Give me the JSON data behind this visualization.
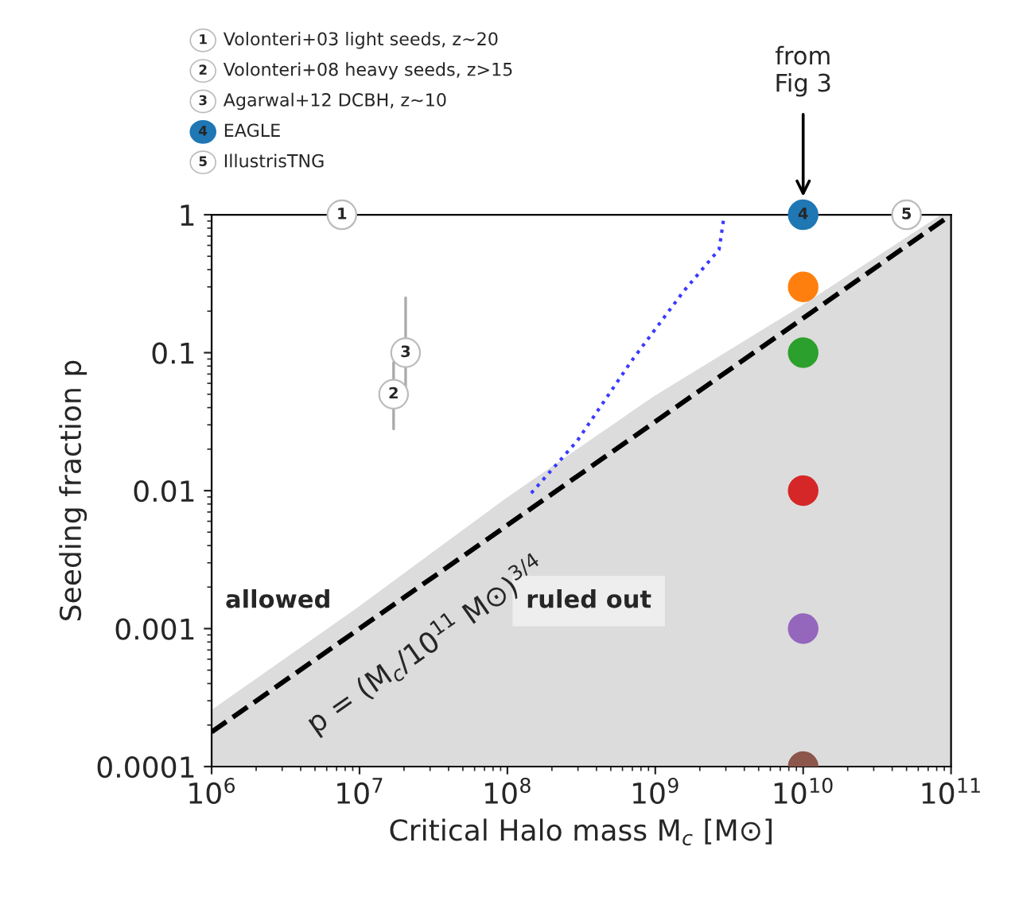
{
  "chart_data": {
    "type": "scatter",
    "xlabel": "Critical Halo mass M$_{c}$ [M⊙]",
    "ylabel": "Seeding fraction p",
    "log": "xy",
    "xlim": [
      1000000,
      100000000000
    ],
    "xticks": [
      {
        "value": 1000000,
        "label": "10$^{6}$"
      },
      {
        "value": 10000000,
        "label": "10$^{7}$"
      },
      {
        "value": 100000000,
        "label": "10$^{8}$"
      },
      {
        "value": 1000000000,
        "label": "10$^{9}$"
      },
      {
        "value": 10000000000,
        "label": "10$^{10}$"
      },
      {
        "value": 100000000000,
        "label": "10$^{11}$"
      }
    ],
    "ylim": [
      0.0001,
      1
    ],
    "yticks": [
      {
        "value": 0.0001,
        "label": "0.0001"
      },
      {
        "value": 0.001,
        "label": "0.001"
      },
      {
        "value": 0.01,
        "label": "0.01"
      },
      {
        "value": 0.1,
        "label": "0.1"
      },
      {
        "value": 1,
        "label": "1"
      }
    ],
    "grid": false,
    "legend": "top left",
    "series": [
      {
        "type": "area",
        "color": "#dcdcdc",
        "x": [
          1000000,
          10000000,
          100000000,
          1000000000,
          10000000000,
          100000000000
        ],
        "values": [
          0.00023,
          0.0013,
          0.008,
          0.044,
          0.2,
          1
        ]
      },
      {
        "type": "line",
        "color": "#000000",
        "line_style": "dashed",
        "x": [
          1000000,
          100000000000
        ],
        "values": [
          0.000178,
          1
        ]
      },
      {
        "type": "line",
        "color": "#3a3aff",
        "line_style": "dotted",
        "x": [
          145000000,
          297000000,
          690000000,
          1560000000,
          2700000000,
          2900000000
        ],
        "values": [
          0.0096,
          0.023,
          0.087,
          0.28,
          0.56,
          0.93
        ]
      },
      {
        "colors": [
          "#ff7f0e",
          "#2ca02c",
          "#d62728",
          "#9467bd",
          "#8c564b"
        ],
        "x": [
          10000000000,
          10000000000,
          10000000000,
          10000000000,
          10000000000
        ],
        "values": [
          0.3,
          0.1,
          0.01,
          0.001,
          0.0001
        ]
      },
      {
        "name": "Volonteri+03 light seeds, z~20",
        "color": "#ffffff",
        "x": [
          7600000
        ],
        "values": [
          1
        ]
      },
      {
        "name": "Volonteri+08 heavy seeds, z>15",
        "color": "#ffffff",
        "x": [
          17000000
        ],
        "values": [
          0.05
        ],
        "errors": [
          [
            0.028,
            0.085
          ]
        ]
      },
      {
        "name": "Agarwal+12 DCBH, z~10",
        "color": "#ffffff",
        "x": [
          20500000
        ],
        "values": [
          0.1
        ],
        "errors": [
          [
            0.05,
            0.25
          ]
        ]
      },
      {
        "name": "EAGLE",
        "color": "#1f77b4",
        "x": [
          10000000000
        ],
        "values": [
          1
        ]
      },
      {
        "name": "IllustrisTNG",
        "color": "#ffffff",
        "x": [
          50000000000
        ],
        "values": [
          1
        ]
      }
    ],
    "annotations": [
      "allowed",
      "ruled out",
      "p = (M$_{c}$/10$^{11}$ M⊙)$^{3/4}$",
      "from\nFig 3",
      {
        "text": "1",
        "x": 7600000,
        "y": 1
      },
      {
        "text": "2",
        "x": 17000000,
        "y": 0.05
      },
      {
        "text": "3",
        "x": 20500000,
        "y": 0.1
      },
      {
        "text": "4",
        "x": 10000000000,
        "y": 1
      },
      {
        "text": "5",
        "x": 50000000000,
        "y": 1
      }
    ]
  }
}
